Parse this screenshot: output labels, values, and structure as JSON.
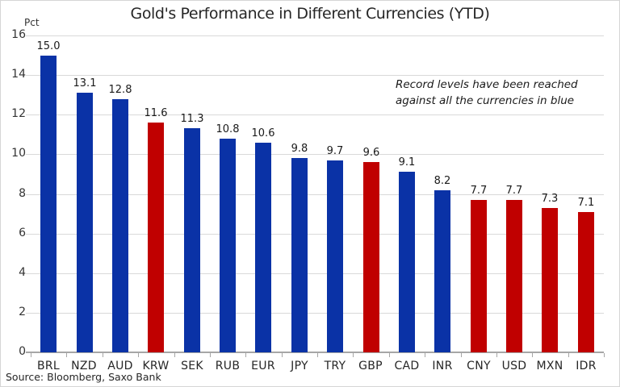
{
  "chart_data": {
    "type": "bar",
    "title": "Gold's Performance in Different Currencies (YTD)",
    "ylabel": "Pct",
    "xlabel": "",
    "categories": [
      "BRL",
      "NZD",
      "AUD",
      "KRW",
      "SEK",
      "RUB",
      "EUR",
      "JPY",
      "TRY",
      "GBP",
      "CAD",
      "INR",
      "CNY",
      "USD",
      "MXN",
      "IDR"
    ],
    "values": [
      15.0,
      13.1,
      12.8,
      11.6,
      11.3,
      10.8,
      10.6,
      9.8,
      9.7,
      9.6,
      9.1,
      8.2,
      7.7,
      7.7,
      7.3,
      7.1
    ],
    "bar_color_keys": [
      "blue",
      "blue",
      "blue",
      "red",
      "blue",
      "blue",
      "blue",
      "blue",
      "blue",
      "red",
      "blue",
      "blue",
      "red",
      "red",
      "red",
      "red"
    ],
    "palette": {
      "blue": "#0a32a6",
      "red": "#c00000"
    },
    "ylim": [
      0,
      16
    ],
    "ytick_step": 2,
    "grid": true,
    "legend": "none",
    "value_label_decimals": 1,
    "annotation_lines": [
      "Record levels have been reached",
      "against all the currencies in blue"
    ],
    "source": "Source: Bloomberg, Saxo Bank"
  }
}
